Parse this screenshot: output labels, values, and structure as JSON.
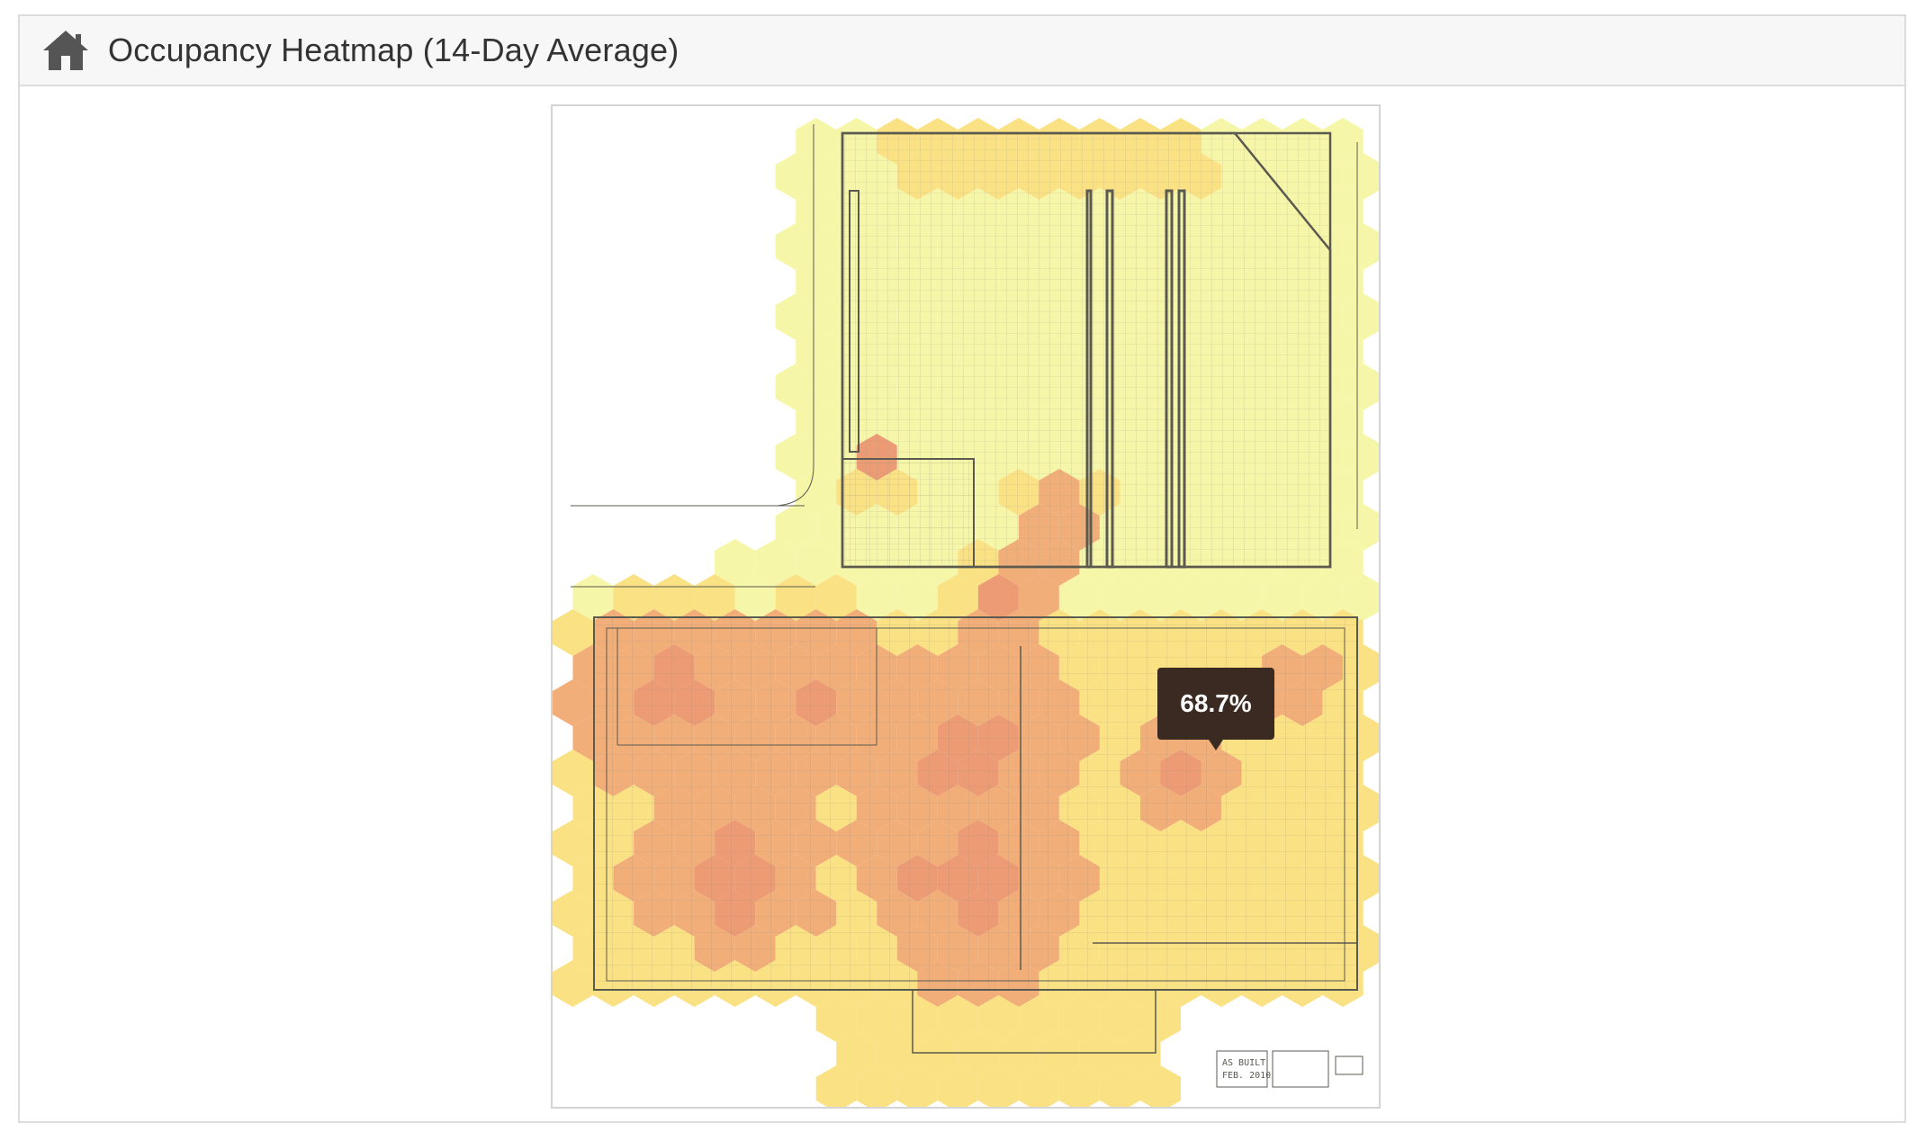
{
  "header": {
    "title": "Occupancy Heatmap (14-Day Average)",
    "icon": "home-icon"
  },
  "floorplan": {
    "title_block": {
      "line1": "AS BUILT",
      "line2": "FEB. 2010"
    }
  },
  "tooltip": {
    "value": "68.7%"
  },
  "colors": {
    "header_bg": "#f7f7f7",
    "title_text": "#333333",
    "tooltip_bg": "#3a2a21",
    "heat_low": "#f5f59a",
    "heat_mid": "#f9dc6e",
    "heat_high": "#f0a062",
    "heat_peak": "#e98a5c"
  }
}
